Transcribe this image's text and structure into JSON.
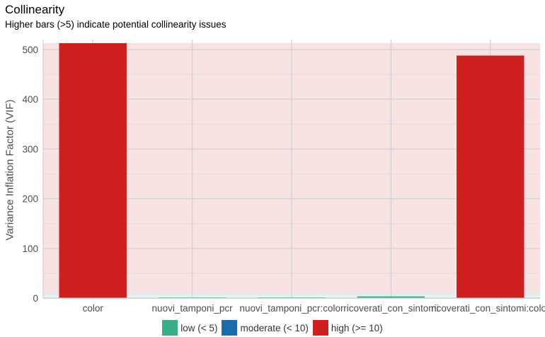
{
  "chart_data": {
    "type": "bar",
    "title": "Collinearity",
    "subtitle": "Higher bars (>5) indicate potential collinearity issues",
    "xlabel": "",
    "ylabel": "Variance Inflation Factor (VIF)",
    "ylim": [
      0,
      520
    ],
    "yticks": [
      0,
      100,
      200,
      300,
      400,
      500
    ],
    "grid": true,
    "categories": [
      "color",
      "nuovi_tamponi_pcr",
      "nuovi_tamponi_pcr:color",
      "ricoverati_con_sintomi",
      "ricoverati_con_sintomi:color"
    ],
    "values": [
      513,
      1.3,
      1.3,
      3.4,
      488
    ],
    "groups": [
      "high",
      "low",
      "low",
      "low",
      "high"
    ],
    "background_bands": [
      {
        "group": "low",
        "from": 0,
        "to": 5
      },
      {
        "group": "moderate",
        "from": 5,
        "to": 10
      },
      {
        "group": "high",
        "from": 10,
        "to": 513
      }
    ],
    "legend_position": "bottom",
    "legend": [
      {
        "group": "low",
        "label": "low (< 5)",
        "color": "#3aaf85"
      },
      {
        "group": "moderate",
        "label": "moderate (< 10)",
        "color": "#1b6ca8"
      },
      {
        "group": "high",
        "label": "high (>= 10)",
        "color": "#cd201f"
      }
    ]
  }
}
